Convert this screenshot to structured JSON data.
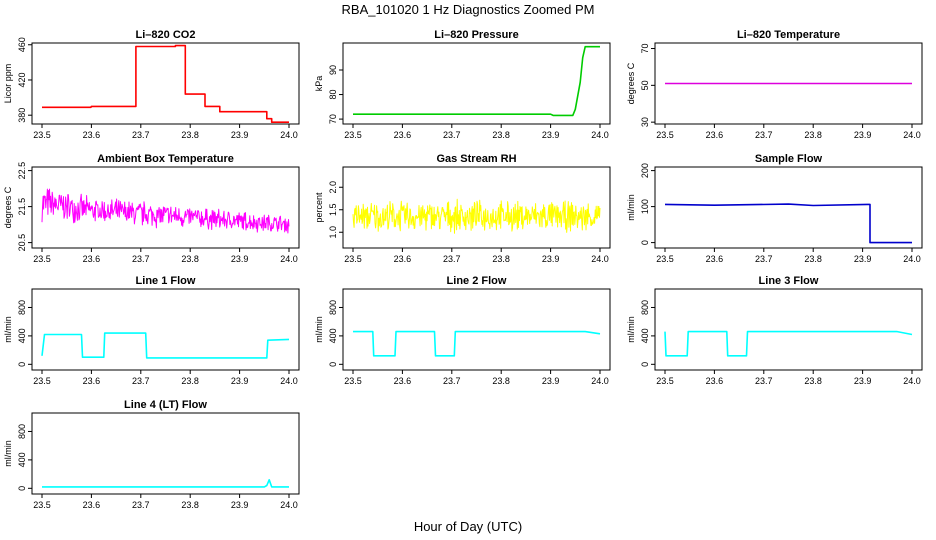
{
  "figure": {
    "title": "RBA_101020  1 Hz Diagnostics Zoomed PM",
    "xlabel": "Hour of Day (UTC)"
  },
  "chart_data": [
    {
      "type": "line",
      "title": "Li–820 CO2",
      "ylabel": "Licor ppm",
      "color": "#ff0000",
      "xlim": [
        23.5,
        24.0
      ],
      "ylim": [
        370,
        462
      ],
      "x_ticks": [
        "23.5",
        "23.6",
        "23.7",
        "23.8",
        "23.9",
        "24.0"
      ],
      "y_ticks": [
        "380",
        "420",
        "460"
      ],
      "x": [
        23.5,
        23.599,
        23.6,
        23.69,
        23.69,
        23.77,
        23.77,
        23.79,
        23.79,
        23.83,
        23.83,
        23.86,
        23.86,
        23.955,
        23.955,
        23.965,
        23.965,
        24.0
      ],
      "y": [
        389,
        389,
        390,
        390,
        458,
        458,
        459,
        459,
        404,
        404,
        390,
        390,
        384,
        384,
        376,
        376,
        372,
        372
      ]
    },
    {
      "type": "line",
      "title": "Li–820 Pressure",
      "ylabel": "kPa",
      "color": "#00cc00",
      "xlim": [
        23.5,
        24.0
      ],
      "ylim": [
        68,
        101
      ],
      "x_ticks": [
        "23.5",
        "23.6",
        "23.7",
        "23.8",
        "23.9",
        "24.0"
      ],
      "y_ticks": [
        "70",
        "80",
        "90"
      ],
      "x": [
        23.5,
        23.9,
        23.905,
        23.945,
        23.95,
        23.96,
        23.965,
        23.97,
        23.98,
        24.0
      ],
      "y": [
        72,
        72,
        71.5,
        71.5,
        74,
        85,
        95,
        99.5,
        99.5,
        99.5
      ]
    },
    {
      "type": "line",
      "title": "Li–820 Temperature",
      "ylabel": "degrees C",
      "color": "#dd00dd",
      "xlim": [
        23.5,
        24.0
      ],
      "ylim": [
        29,
        73
      ],
      "x_ticks": [
        "23.5",
        "23.6",
        "23.7",
        "23.8",
        "23.9",
        "24.0"
      ],
      "y_ticks": [
        "30",
        "50",
        "70"
      ],
      "x": [
        23.5,
        24.0
      ],
      "y": [
        51,
        51
      ]
    },
    {
      "type": "line",
      "title": "Ambient Box Temperature",
      "ylabel": "degrees C",
      "color": "#ff00ff",
      "noise": 1,
      "xlim": [
        23.5,
        24.0
      ],
      "ylim": [
        20.35,
        22.6
      ],
      "x_ticks": [
        "23.5",
        "23.6",
        "23.7",
        "23.8",
        "23.9",
        "24.0"
      ],
      "y_ticks": [
        "20.5",
        "21.5",
        "22.5"
      ],
      "x": [
        23.5,
        23.6,
        23.7,
        23.8,
        23.9,
        24.0
      ],
      "y": [
        21.6,
        21.4,
        21.3,
        21.2,
        21.1,
        21.0
      ],
      "band": [
        0.8,
        0.55,
        0.6,
        0.5,
        0.45,
        0.4
      ]
    },
    {
      "type": "line",
      "title": "Gas Stream RH",
      "ylabel": "percent",
      "color": "#ffff00",
      "noise": 1,
      "xlim": [
        23.5,
        24.0
      ],
      "ylim": [
        0.65,
        2.45
      ],
      "x_ticks": [
        "23.5",
        "23.6",
        "23.7",
        "23.8",
        "23.9",
        "24.0"
      ],
      "y_ticks": [
        "1.0",
        "1.5",
        "2.0"
      ],
      "x": [
        23.5,
        23.75,
        24.0
      ],
      "y": [
        1.35,
        1.35,
        1.35
      ],
      "band": [
        0.55,
        0.55,
        0.55
      ]
    },
    {
      "type": "line",
      "title": "Sample Flow",
      "ylabel": "ml/min",
      "color": "#0000cc",
      "xlim": [
        23.5,
        24.0
      ],
      "ylim": [
        -15,
        210
      ],
      "x_ticks": [
        "23.5",
        "23.6",
        "23.7",
        "23.8",
        "23.9",
        "24.0"
      ],
      "y_ticks": [
        "0",
        "100",
        "200"
      ],
      "x": [
        23.5,
        23.6,
        23.75,
        23.8,
        23.91,
        23.915,
        23.915,
        24.0
      ],
      "y": [
        106,
        104,
        107,
        103,
        106,
        106,
        0,
        0
      ]
    },
    {
      "type": "line",
      "title": "Line 1 Flow",
      "ylabel": "ml/min",
      "color": "#00ffff",
      "xlim": [
        23.5,
        24.0
      ],
      "ylim": [
        -80,
        1060
      ],
      "x_ticks": [
        "23.5",
        "23.6",
        "23.7",
        "23.8",
        "23.9",
        "24.0"
      ],
      "y_ticks": [
        "0",
        "400",
        "800"
      ],
      "x": [
        23.5,
        23.505,
        23.58,
        23.582,
        23.625,
        23.627,
        23.71,
        23.712,
        23.955,
        23.957,
        24.0
      ],
      "y": [
        120,
        420,
        420,
        100,
        100,
        440,
        440,
        90,
        90,
        340,
        350
      ]
    },
    {
      "type": "line",
      "title": "Line 2 Flow",
      "ylabel": "ml/min",
      "color": "#00ffff",
      "xlim": [
        23.5,
        24.0
      ],
      "ylim": [
        -80,
        1060
      ],
      "x_ticks": [
        "23.5",
        "23.6",
        "23.7",
        "23.8",
        "23.9",
        "24.0"
      ],
      "y_ticks": [
        "0",
        "400",
        "800"
      ],
      "x": [
        23.5,
        23.54,
        23.542,
        23.585,
        23.587,
        23.665,
        23.667,
        23.705,
        23.707,
        23.97,
        24.0
      ],
      "y": [
        460,
        460,
        120,
        120,
        460,
        460,
        120,
        120,
        460,
        460,
        430
      ]
    },
    {
      "type": "line",
      "title": "Line 3 Flow",
      "ylabel": "ml/min",
      "color": "#00ffff",
      "xlim": [
        23.5,
        24.0
      ],
      "ylim": [
        -80,
        1060
      ],
      "x_ticks": [
        "23.5",
        "23.6",
        "23.7",
        "23.8",
        "23.9",
        "24.0"
      ],
      "y_ticks": [
        "0",
        "400",
        "800"
      ],
      "x": [
        23.5,
        23.502,
        23.545,
        23.547,
        23.625,
        23.627,
        23.665,
        23.667,
        23.97,
        24.0
      ],
      "y": [
        460,
        120,
        120,
        460,
        460,
        120,
        120,
        460,
        460,
        420
      ]
    },
    {
      "type": "line",
      "title": "Line 4 (LT) Flow",
      "ylabel": "ml/min",
      "color": "#00ffff",
      "xlim": [
        23.5,
        24.0
      ],
      "ylim": [
        -80,
        1060
      ],
      "x_ticks": [
        "23.5",
        "23.6",
        "23.7",
        "23.8",
        "23.9",
        "24.0"
      ],
      "y_ticks": [
        "0",
        "400",
        "800"
      ],
      "x": [
        23.5,
        23.95,
        23.955,
        23.96,
        23.965,
        24.0
      ],
      "y": [
        20,
        20,
        40,
        120,
        20,
        20
      ]
    }
  ]
}
